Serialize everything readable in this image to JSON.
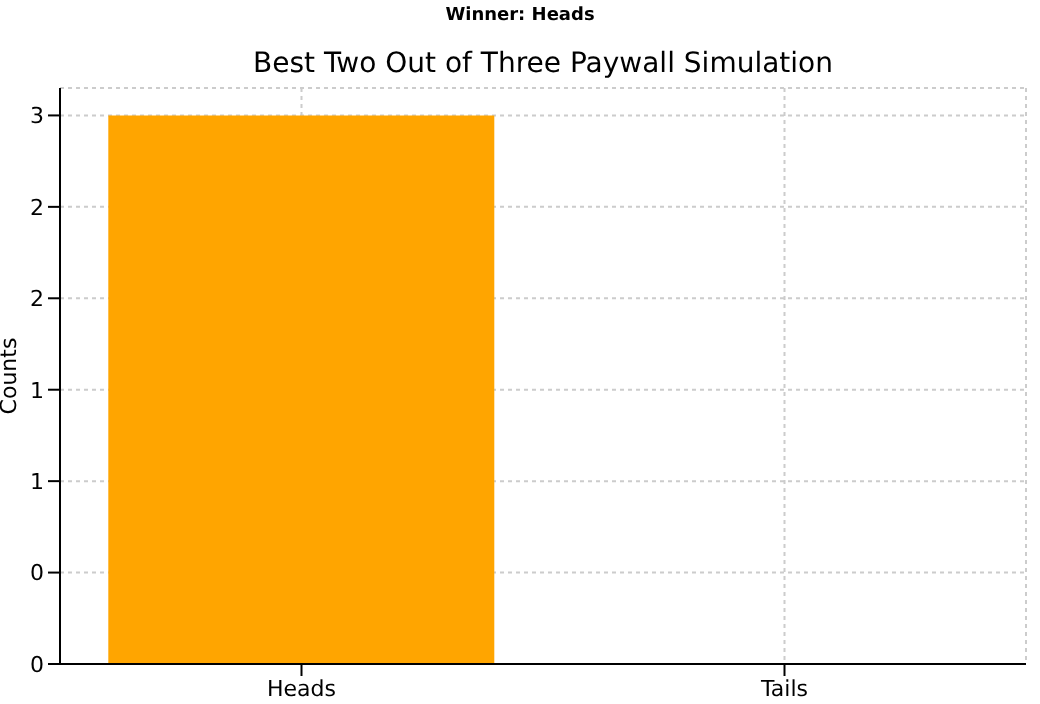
{
  "chart_data": {
    "type": "bar",
    "subtitle": "Winner: Heads",
    "title": "Best Two Out of Three Paywall Simulation",
    "ylabel": "Counts",
    "categories": [
      "Heads",
      "Tails"
    ],
    "values": [
      3,
      0
    ],
    "color": "#ffa500",
    "ylim": [
      0,
      3.15
    ],
    "yticks": [
      0,
      {
        "value": 0.5,
        "label": "0"
      },
      1,
      {
        "value": 1.5,
        "label": "1"
      },
      2,
      {
        "value": 2.5,
        "label": "2"
      },
      3
    ],
    "grid": true
  }
}
